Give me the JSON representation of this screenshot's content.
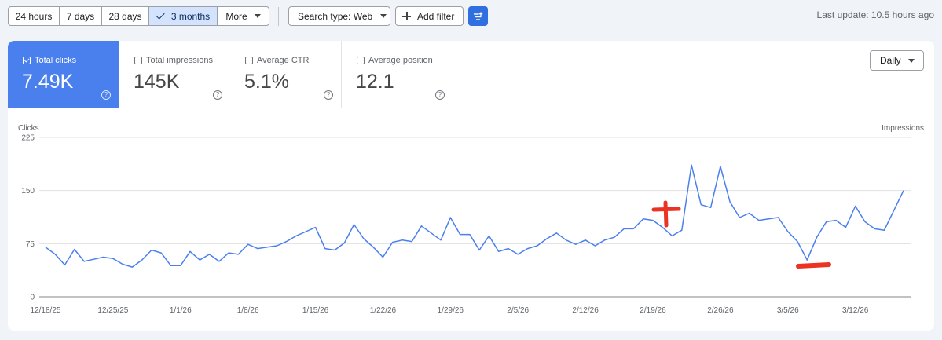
{
  "toolbar": {
    "date_ranges": [
      "24 hours",
      "7 days",
      "28 days",
      "3 months",
      "More"
    ],
    "selected_range": "3 months",
    "search_type": "Search type: Web",
    "add_filter": "Add filter",
    "icons": {
      "check": "check-icon",
      "dropdown": "chevron-down-icon",
      "add": "plus-icon",
      "settings": "filter-settings-icon"
    },
    "last_update": "Last update: 10.5 hours ago"
  },
  "metrics": [
    {
      "label": "Total clicks",
      "value": "7.49K",
      "checked": true
    },
    {
      "label": "Total impressions",
      "value": "145K",
      "checked": false
    },
    {
      "label": "Average CTR",
      "value": "5.1%",
      "checked": false
    },
    {
      "label": "Average position",
      "value": "12.1",
      "checked": false
    }
  ],
  "granularity": "Daily",
  "colors": {
    "accent": "#4a7fee",
    "line": "#4a7fee",
    "annotation": "#ea3323",
    "toolbar_button": "#2f6fe0"
  },
  "chart_data": {
    "type": "line",
    "ylabel": "Clicks",
    "y2label": "Impressions",
    "ylim": [
      0,
      225
    ],
    "yticks": [
      "225",
      "150",
      "75",
      "0"
    ],
    "x_ticks": [
      "12/18/25",
      "12/25/25",
      "1/1/26",
      "1/8/26",
      "1/15/26",
      "1/22/26",
      "1/29/26",
      "2/5/26",
      "2/12/26",
      "2/19/26",
      "2/26/26",
      "3/5/26",
      "3/12/26"
    ],
    "grid": true,
    "series": [
      {
        "values": [
          70,
          60,
          45,
          67,
          50,
          53,
          56,
          54,
          46,
          42,
          52,
          66,
          62,
          44,
          44,
          64,
          52,
          60,
          50,
          62,
          60,
          74,
          68,
          70,
          72,
          78,
          86,
          92,
          98,
          68,
          66,
          76,
          102,
          82,
          70,
          56,
          77,
          80,
          78,
          100,
          90,
          80,
          112,
          88,
          88,
          66,
          86,
          64,
          68,
          60,
          68,
          72,
          82,
          90,
          80,
          74,
          80,
          72,
          80,
          84,
          96,
          96,
          110,
          108,
          98,
          86,
          94,
          186,
          130,
          126,
          184,
          134,
          112,
          118,
          108,
          110,
          112,
          92,
          78,
          52,
          84,
          106,
          108,
          98,
          128,
          106,
          96,
          94,
          122,
          150
        ]
      }
    ],
    "annotations": [
      "plus-mark",
      "minus-mark"
    ]
  }
}
